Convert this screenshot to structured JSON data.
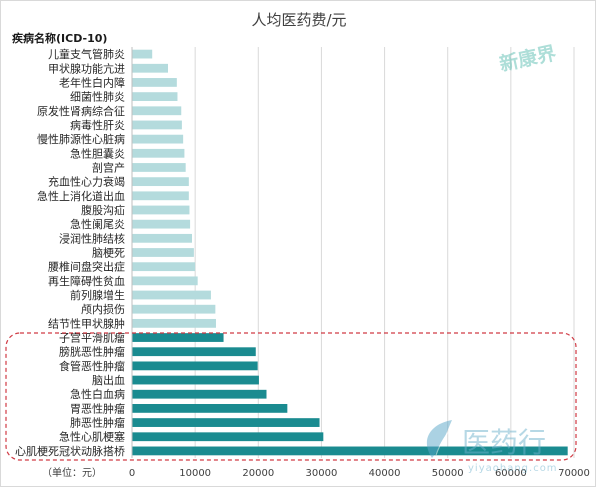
{
  "chart_data": {
    "type": "bar",
    "orientation": "horizontal",
    "title": "人均医药费/元",
    "category_axis_title": "疾病名称(ICD-10)",
    "unit_label": "（单位：元）",
    "xlim": [
      0,
      70000
    ],
    "x_ticks": [
      0,
      10000,
      20000,
      30000,
      40000,
      50000,
      60000,
      70000
    ],
    "grid": "vertical",
    "legend": "none",
    "colors": {
      "light": "#b4dbdd",
      "dark": "#1a8b90",
      "highlight_box": "#d03a44"
    },
    "categories": [
      "儿童支气管肺炎",
      "甲状腺功能亢进",
      "老年性白内障",
      "细菌性肺炎",
      "原发性肾病综合征",
      "病毒性肝炎",
      "慢性肺源性心脏病",
      "急性胆囊炎",
      "剖宫产",
      "充血性心力衰竭",
      "急性上消化道出血",
      "腹股沟疝",
      "急性阑尾炎",
      "浸润性肺结核",
      "脑梗死",
      "腰椎间盘突出症",
      "再生障碍性贫血",
      "前列腺增生",
      "颅内损伤",
      "结节性甲状腺肿",
      "子宫平滑肌瘤",
      "膀胱恶性肿瘤",
      "食管恶性肿瘤",
      "脑出血",
      "急性白血病",
      "胃恶性肿瘤",
      "肺恶性肿瘤",
      "急性心肌梗塞",
      "心肌梗死冠状动脉搭桥"
    ],
    "values": [
      3200,
      5700,
      7100,
      7200,
      7800,
      7900,
      8100,
      8300,
      8500,
      9000,
      9000,
      9100,
      9200,
      9500,
      9800,
      10000,
      10400,
      12500,
      13200,
      13300,
      14500,
      19600,
      19900,
      20100,
      21300,
      24600,
      29700,
      30300,
      69000
    ],
    "highlight_from_index": 20
  },
  "watermarks": {
    "top_right": "新康界",
    "bottom_right": "医药行",
    "bottom_right_url": "yiyaohang.com"
  }
}
